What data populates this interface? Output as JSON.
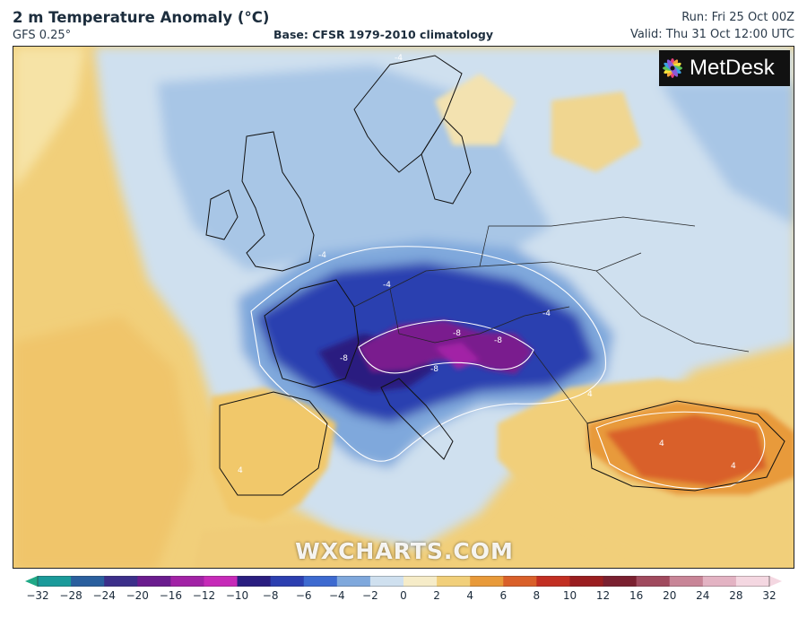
{
  "header": {
    "title": "2 m Temperature Anomaly (°C)",
    "model": "GFS 0.25°",
    "base": "Base: CFSR 1979-2010 climatology",
    "run": "Run: Fri 25 Oct 00Z",
    "valid": "Valid: Thu 31 Oct 12:00 UTC"
  },
  "logo": {
    "text": "MetDesk",
    "icon": "metdesk-flower-icon"
  },
  "watermark": "WXCHARTS.COM",
  "legend": {
    "ticks": [
      "−32",
      "−28",
      "−24",
      "−20",
      "−16",
      "−12",
      "−10",
      "−8",
      "−6",
      "−4",
      "−2",
      "0",
      "2",
      "4",
      "6",
      "8",
      "10",
      "12",
      "16",
      "20",
      "24",
      "28",
      "32"
    ],
    "colors": [
      "#1fa987",
      "#1a9a9a",
      "#2a5f9e",
      "#3c2f8a",
      "#6a1c8e",
      "#a222a6",
      "#c62ab8",
      "#2a1e80",
      "#2c3fb0",
      "#3d6ad0",
      "#7fa8dc",
      "#cfe0ef",
      "#f6ecc8",
      "#f1cf7a",
      "#e89a3a",
      "#d9602a",
      "#c22f22",
      "#9a1e20",
      "#7a2030",
      "#a04a5e",
      "#c88597",
      "#e3b3c3",
      "#f4d7e1"
    ]
  },
  "contour_labels": [
    "-8",
    "-8",
    "-8",
    "-8",
    "-4",
    "-4",
    "-4",
    "-4",
    "4",
    "4",
    "4",
    "4"
  ],
  "colors": {
    "ocean_warm": "#f1cf7a",
    "light_blue": "#cfe0ef",
    "blue": "#7fa8dc",
    "deep_blue": "#2c3fb0",
    "navy": "#2a1e80",
    "purple": "#7a1c8e",
    "orange": "#e89a3a",
    "red": "#d9602a"
  }
}
